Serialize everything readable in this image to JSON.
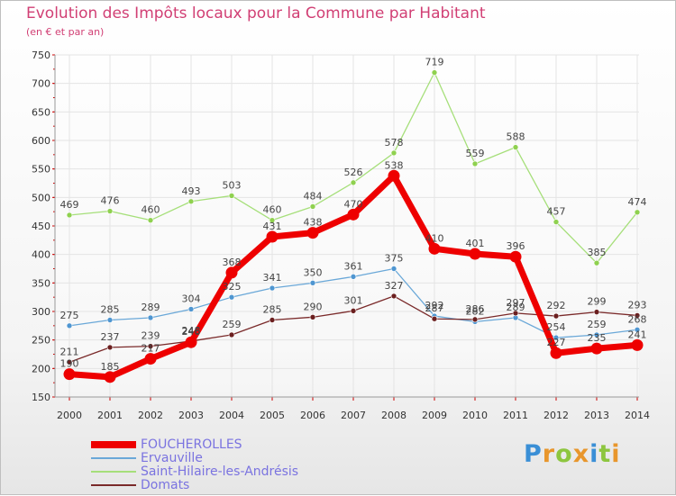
{
  "title": "Evolution des Impôts locaux pour la Commune par Habitant",
  "subtitle": "(en € et par an)",
  "logo": {
    "text": "Proxiti",
    "letters": [
      {
        "ch": "P",
        "color": "#3a8fd6"
      },
      {
        "ch": "r",
        "color": "#e8962c"
      },
      {
        "ch": "o",
        "color": "#8dc63f"
      },
      {
        "ch": "x",
        "color": "#e8962c"
      },
      {
        "ch": "i",
        "color": "#3a8fd6"
      },
      {
        "ch": "t",
        "color": "#8dc63f"
      },
      {
        "ch": "i",
        "color": "#e8962c"
      }
    ]
  },
  "chart_data": {
    "type": "line",
    "title": "Evolution des Impôts locaux pour la Commune par Habitant",
    "xlabel": "",
    "ylabel": "",
    "x": [
      2000,
      2001,
      2002,
      2003,
      2004,
      2005,
      2006,
      2007,
      2008,
      2009,
      2010,
      2011,
      2012,
      2013,
      2014
    ],
    "ylim": [
      150,
      750
    ],
    "yticks": [
      150,
      200,
      250,
      300,
      350,
      400,
      450,
      500,
      550,
      600,
      650,
      700,
      750
    ],
    "series": [
      {
        "name": "Saint-Hilaire-les-Andrésis",
        "color": "#a6df7a",
        "marker": "#8fd14f",
        "width": 1.3,
        "values": [
          469,
          476,
          460,
          493,
          503,
          460,
          484,
          526,
          578,
          719,
          559,
          588,
          457,
          385,
          474
        ]
      },
      {
        "name": "Ervauville",
        "color": "#6aa8d8",
        "marker": "#4f96d1",
        "width": 1.3,
        "values": [
          275,
          285,
          289,
          304,
          325,
          341,
          350,
          361,
          375,
          292,
          282,
          289,
          254,
          259,
          268
        ]
      },
      {
        "name": "Domats",
        "color": "#7a2a2a",
        "marker": "#6b1f1f",
        "width": 1.3,
        "values": [
          211,
          237,
          239,
          248,
          259,
          285,
          290,
          301,
          327,
          287,
          286,
          297,
          292,
          299,
          293
        ]
      },
      {
        "name": "FOUCHEROLLES",
        "color": "#ee0000",
        "marker": "#ee0000",
        "width": 7,
        "values": [
          190,
          185,
          217,
          246,
          368,
          431,
          438,
          470,
          538,
          410,
          401,
          396,
          227,
          235,
          241
        ]
      }
    ],
    "legend": [
      "FOUCHEROLLES",
      "Ervauville",
      "Saint-Hilaire-les-Andrésis",
      "Domats"
    ],
    "legend_position": "bottom-left",
    "grid": true
  }
}
